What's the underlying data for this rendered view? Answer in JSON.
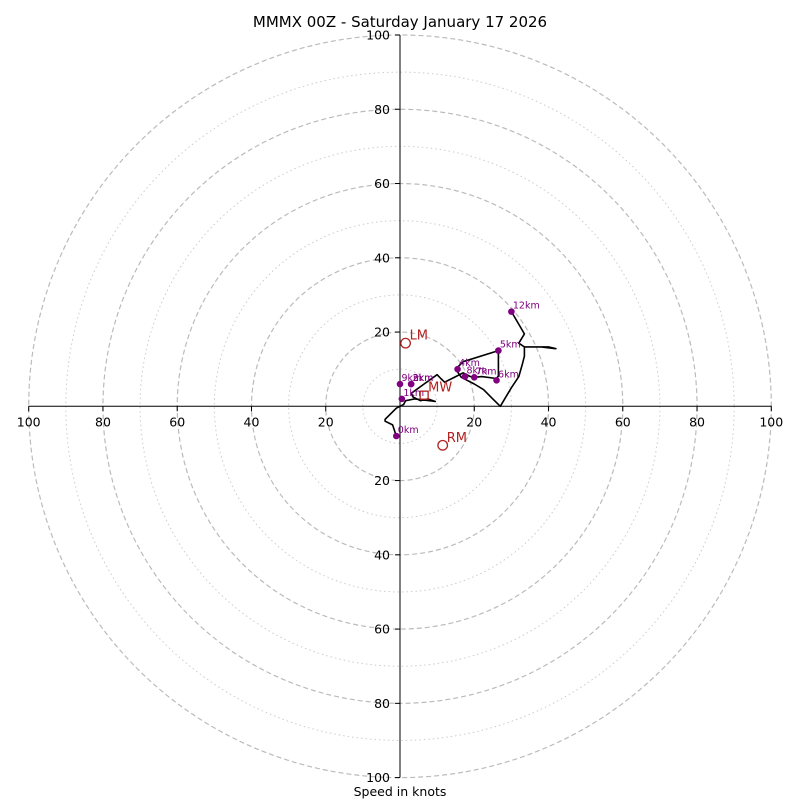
{
  "chart_data": {
    "type": "hodograph",
    "title": "MMMX 00Z - Saturday January 17 2026",
    "xlabel": "Speed in knots",
    "axis_max": 100,
    "ring_major": [
      20,
      40,
      60,
      80,
      100
    ],
    "ring_minor": [
      10,
      30,
      50,
      70,
      90
    ],
    "tick_values": [
      20,
      40,
      60,
      80,
      100
    ],
    "colors": {
      "trace": "#000000",
      "height_marker": "#800080",
      "storm_motion": "#b22222",
      "ring": "#bbbbbb",
      "axis": "#000000"
    },
    "trace": [
      [
        -1,
        -8
      ],
      [
        -2,
        -5
      ],
      [
        -4,
        -4
      ],
      [
        -4,
        -3.5
      ],
      [
        -1,
        -0.5
      ],
      [
        1,
        0.5
      ],
      [
        1.5,
        1.5
      ],
      [
        4,
        2
      ],
      [
        8,
        1.5
      ],
      [
        9.5,
        1.3
      ],
      [
        7.5,
        2
      ],
      [
        5.5,
        1.5
      ],
      [
        3.5,
        2.5
      ],
      [
        3,
        3.5
      ],
      [
        4,
        4.2
      ],
      [
        6.5,
        6
      ],
      [
        10,
        8.5
      ],
      [
        11,
        7.5
      ],
      [
        12,
        6.5
      ],
      [
        15,
        8
      ],
      [
        17,
        9
      ],
      [
        19,
        8
      ],
      [
        20,
        7.8
      ],
      [
        22,
        8
      ],
      [
        26,
        7.5
      ],
      [
        26.5,
        8.2
      ],
      [
        26.5,
        15
      ],
      [
        17,
        12
      ],
      [
        15,
        10
      ],
      [
        16.5,
        7.8
      ],
      [
        20,
        6
      ],
      [
        22.5,
        4.5
      ],
      [
        25,
        2
      ],
      [
        27,
        0
      ],
      [
        30,
        5
      ],
      [
        32,
        8
      ],
      [
        33,
        11.5
      ],
      [
        33.5,
        13.5
      ],
      [
        33.5,
        16
      ],
      [
        38,
        16
      ],
      [
        42,
        15.5
      ],
      [
        40,
        16
      ],
      [
        33.5,
        16
      ],
      [
        32,
        17
      ],
      [
        33.5,
        19.5
      ],
      [
        30,
        25.5
      ]
    ],
    "height_markers": [
      {
        "label": "0km",
        "u": -1,
        "v": -8
      },
      {
        "label": "1km",
        "u": 0.5,
        "v": 2
      },
      {
        "label": "2km",
        "u": 3,
        "v": 6
      },
      {
        "label": "3km",
        "u": 3,
        "v": 6
      },
      {
        "label": "4km",
        "u": 15.5,
        "v": 10
      },
      {
        "label": "5km",
        "u": 26.5,
        "v": 15
      },
      {
        "label": "6km",
        "u": 26,
        "v": 7
      },
      {
        "label": "7km",
        "u": 20,
        "v": 7.8
      },
      {
        "label": "8km",
        "u": 17.5,
        "v": 8
      },
      {
        "label": "9km",
        "u": 0,
        "v": 6
      },
      {
        "label": "12km",
        "u": 30,
        "v": 25.5
      }
    ],
    "storm_motion": [
      {
        "label": "LM",
        "u": 1.5,
        "v": 17
      },
      {
        "label": "RM",
        "u": 11.5,
        "v": -10.5
      },
      {
        "label": "MW",
        "u": 6.5,
        "v": 3
      }
    ]
  }
}
